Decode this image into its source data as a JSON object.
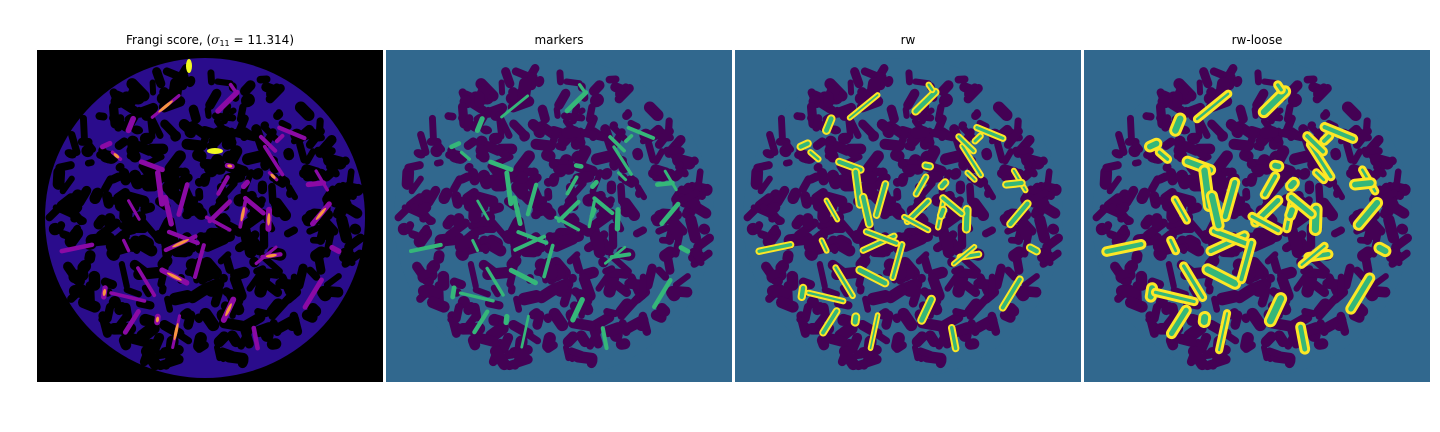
{
  "figure": {
    "panels": [
      {
        "title_prefix": "Frangi score, (",
        "title_symbol": "σ",
        "title_subscript": "11",
        "title_suffix": " = 11.314)",
        "colormap": "plasma"
      },
      {
        "title": "markers",
        "colormap": "viridis"
      },
      {
        "title": "rw",
        "colormap": "viridis"
      },
      {
        "title": "rw-loose",
        "colormap": "viridis"
      }
    ],
    "colors": {
      "background_seg": "#31688e",
      "mask_seg": "#440154",
      "marker": "#35b779",
      "label_yellow": "#fde725",
      "frangi_bg": "#000000",
      "frangi_low": "#2a0c8c",
      "frangi_mid": "#8b0aa5",
      "frangi_high": "#f89540",
      "frangi_peak": "#f0f921"
    }
  }
}
